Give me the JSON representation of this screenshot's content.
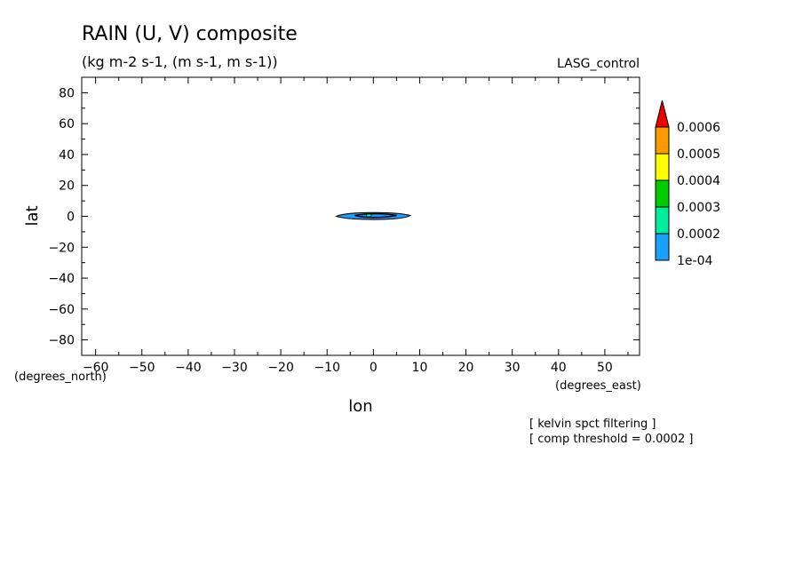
{
  "chart_data": {
    "type": "heatmap",
    "title": "RAIN (U, V) composite",
    "subtitle": "(kg m-2 s-1, (m s-1, m s-1))",
    "experiment": "LASG_control",
    "xlabel": "lon",
    "ylabel": "lat",
    "x_units": "(degrees_east)",
    "y_units": "(degrees_north)",
    "xlim": [
      -63,
      57.5
    ],
    "ylim": [
      -90,
      90
    ],
    "x_ticks": [
      -60,
      -50,
      -40,
      -30,
      -20,
      -10,
      0,
      10,
      20,
      30,
      40,
      50
    ],
    "y_ticks": [
      80,
      60,
      40,
      20,
      0,
      -20,
      -40,
      -60,
      -80
    ],
    "grid": false,
    "colorbar": {
      "levels": [
        "1e-04",
        "0.0002",
        "0.0003",
        "0.0004",
        "0.0005",
        "0.0006"
      ],
      "colors": [
        "#1aa0ff",
        "#00ee99",
        "#00cc00",
        "#ffff00",
        "#ff9900",
        "#ee0000"
      ]
    },
    "feature": {
      "description_lon_range": [
        -8,
        8
      ],
      "description_lat_range": [
        -2,
        2
      ],
      "fill_color": "#1aa0ff"
    },
    "notes": [
      "[ kelvin spct filtering ]",
      "[ comp threshold = 0.0002 ]"
    ]
  }
}
